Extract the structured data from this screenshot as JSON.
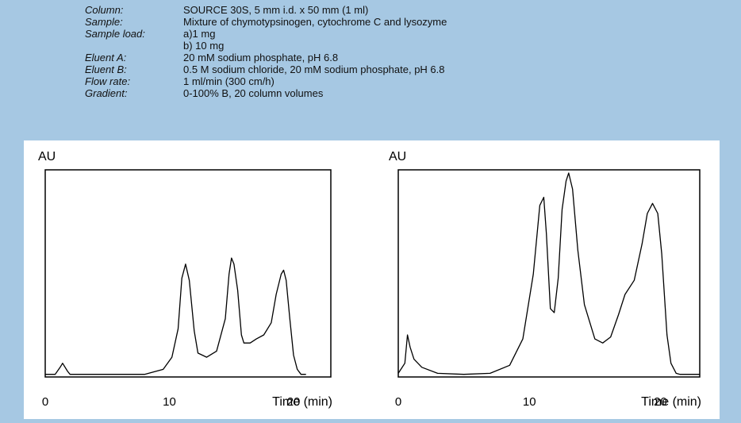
{
  "conditions": {
    "rows": [
      {
        "label": "Column:",
        "value": "SOURCE 30S, 5 mm i.d. x 50 mm (1 ml)"
      },
      {
        "label": "Sample:",
        "value": "Mixture of chymotypsinogen, cytochrome C and lysozyme"
      },
      {
        "label": "Sample load:",
        "value": "a)1 mg"
      },
      {
        "label": "",
        "value": "b) 10 mg"
      },
      {
        "label": "Eluent A:",
        "value": "20 mM sodium phosphate, pH 6.8"
      },
      {
        "label": "Eluent B:",
        "value": "0.5 M sodium chloride, 20 mM sodium phosphate, pH 6.8"
      },
      {
        "label": "Flow rate:",
        "value": "1 ml/min (300 cm/h)"
      },
      {
        "label": "Gradient:",
        "value": "0-100% B, 20 column volumes"
      }
    ]
  },
  "chart_data": [
    {
      "type": "line",
      "ylabel": "AU",
      "xlabel": "Time (min)",
      "xlim": [
        0,
        23
      ],
      "ylim": [
        0,
        1
      ],
      "xticks": [
        "0",
        "10",
        "20"
      ],
      "series": [
        {
          "x": [
            0,
            0.8,
            1.2,
            1.4,
            1.8,
            2.0,
            8.0,
            9.5,
            10.2,
            10.7,
            11.0,
            11.3,
            11.6,
            12.0,
            12.3,
            13.0,
            13.8,
            14.5,
            14.8,
            15.0,
            15.2,
            15.5,
            15.8,
            16.0,
            16.5,
            17.0,
            17.6,
            18.2,
            18.6,
            19.0,
            19.2,
            19.4,
            19.7,
            20.0,
            20.3,
            20.6,
            21.0
          ],
          "y": [
            0.005,
            0.005,
            0.04,
            0.06,
            0.02,
            0.005,
            0.005,
            0.03,
            0.09,
            0.23,
            0.48,
            0.55,
            0.47,
            0.22,
            0.11,
            0.09,
            0.12,
            0.28,
            0.5,
            0.58,
            0.55,
            0.42,
            0.2,
            0.16,
            0.16,
            0.18,
            0.2,
            0.26,
            0.4,
            0.5,
            0.52,
            0.47,
            0.28,
            0.1,
            0.03,
            0.005,
            0.005
          ]
        }
      ]
    },
    {
      "type": "line",
      "ylabel": "AU",
      "xlabel": "Time (min)",
      "xlim": [
        0,
        23
      ],
      "ylim": [
        0,
        1
      ],
      "xticks": [
        "0",
        "10",
        "20"
      ],
      "series": [
        {
          "x": [
            0,
            0.5,
            0.7,
            0.9,
            1.2,
            1.8,
            3,
            5,
            7,
            8.5,
            9.5,
            10.3,
            10.8,
            11.1,
            11.3,
            11.6,
            11.9,
            12.2,
            12.5,
            12.8,
            13.0,
            13.3,
            13.7,
            14.2,
            15.0,
            15.6,
            16.2,
            16.8,
            17.3,
            18.0,
            18.6,
            19.0,
            19.4,
            19.8,
            20.1,
            20.5,
            20.8,
            21.2,
            21.5,
            23.0
          ],
          "y": [
            0.01,
            0.06,
            0.2,
            0.14,
            0.08,
            0.04,
            0.01,
            0.005,
            0.01,
            0.05,
            0.18,
            0.5,
            0.84,
            0.88,
            0.7,
            0.33,
            0.31,
            0.48,
            0.82,
            0.96,
            1.0,
            0.92,
            0.62,
            0.35,
            0.18,
            0.16,
            0.19,
            0.3,
            0.4,
            0.47,
            0.65,
            0.8,
            0.85,
            0.8,
            0.6,
            0.2,
            0.06,
            0.01,
            0.005,
            0.005
          ]
        }
      ]
    }
  ]
}
